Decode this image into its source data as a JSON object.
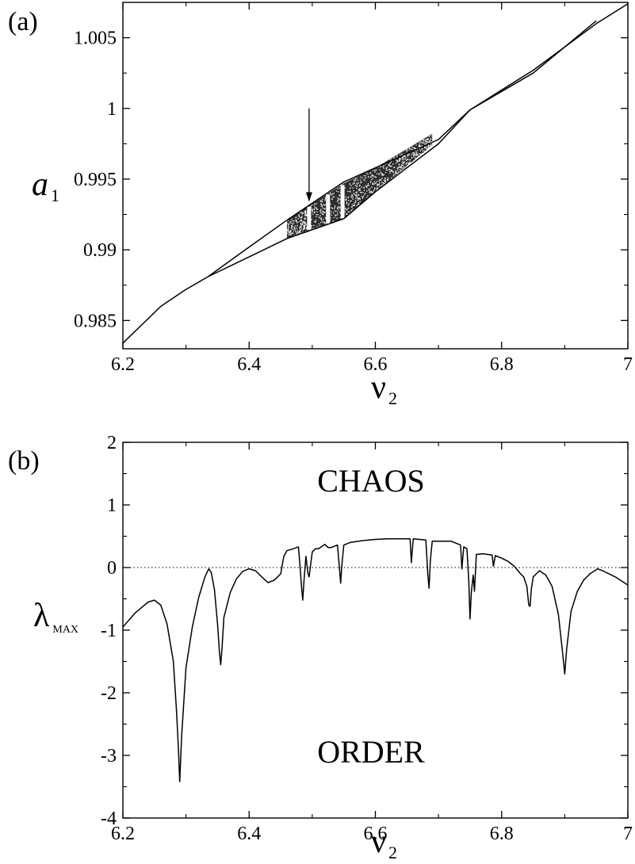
{
  "chart_data": [
    {
      "type": "line",
      "panel_label": "(a)",
      "xlabel": "ν",
      "xlabel_sub": "2",
      "ylabel": "a",
      "ylabel_sub": "1",
      "xlim": [
        6.2,
        7.0
      ],
      "ylim": [
        0.983,
        1.0075
      ],
      "x_ticks": [
        "6.2",
        "6.4",
        "6.6",
        "6.8",
        "7"
      ],
      "y_ticks": [
        "0.985",
        "0.99",
        "0.995",
        "1",
        "1.005"
      ],
      "x_tick_values": [
        6.2,
        6.4,
        6.6,
        6.8,
        7.0
      ],
      "y_tick_values": [
        0.985,
        0.99,
        0.995,
        1.0,
        1.005
      ],
      "grid": false,
      "annotations": [
        {
          "type": "arrow",
          "x": 6.495,
          "y_from": 1.0,
          "y_to": 0.9934
        }
      ],
      "series": [
        {
          "x": [
            6.2,
            6.26,
            6.3,
            6.335
          ],
          "y": [
            0.9834,
            0.986,
            0.9872,
            0.9881
          ]
        },
        {
          "x": [
            6.335,
            6.4,
            6.46,
            6.55,
            6.6,
            6.7,
            6.75,
            6.85,
            6.95,
            7.0
          ],
          "y": [
            0.9881,
            0.9902,
            0.9921,
            0.9948,
            0.9958,
            0.9978,
            0.9999,
            1.0027,
            1.006,
            1.0074
          ]
        },
        {
          "x": [
            6.335,
            6.4,
            6.46,
            6.55,
            6.6,
            6.7,
            6.75,
            6.85,
            6.95
          ],
          "y": [
            0.9881,
            0.9895,
            0.9908,
            0.9922,
            0.9941,
            0.9975,
            0.9999,
            1.0025,
            1.0062
          ]
        }
      ],
      "chaotic_band": {
        "x_start": 6.46,
        "x_end": 6.69,
        "y_upper": [
          [
            6.46,
            0.9921
          ],
          [
            6.55,
            0.9947
          ],
          [
            6.6,
            0.9958
          ],
          [
            6.69,
            0.9982
          ]
        ],
        "y_lower": [
          [
            6.46,
            0.9908
          ],
          [
            6.55,
            0.9922
          ],
          [
            6.6,
            0.9941
          ],
          [
            6.69,
            0.9974
          ]
        ],
        "windows": [
          6.495,
          6.525,
          6.548
        ]
      }
    },
    {
      "type": "line",
      "panel_label": "(b)",
      "xlabel": "ν",
      "xlabel_sub": "2",
      "ylabel": "λ",
      "ylabel_sub": "MAX",
      "xlim": [
        6.2,
        7.0
      ],
      "ylim": [
        -4,
        2
      ],
      "x_ticks": [
        "6.2",
        "6.4",
        "6.6",
        "6.8",
        "7"
      ],
      "y_ticks": [
        "-4",
        "-3",
        "-2",
        "-1",
        "0",
        "1",
        "2"
      ],
      "x_tick_values": [
        6.2,
        6.4,
        6.6,
        6.8,
        7.0
      ],
      "y_tick_values": [
        -4,
        -3,
        -2,
        -1,
        0,
        1,
        2
      ],
      "grid": false,
      "reference_line": {
        "y": 0,
        "style": "dotted"
      },
      "annotations": [
        {
          "text": "CHAOS",
          "x": 6.6,
          "y": 1.05
        },
        {
          "text": "ORDER",
          "x": 6.6,
          "y": -3.35
        }
      ],
      "series": [
        {
          "x": [
            6.2,
            6.22,
            6.24,
            6.25,
            6.26,
            6.27,
            6.28,
            6.285,
            6.288,
            6.29,
            6.293,
            6.3,
            6.31,
            6.32,
            6.33,
            6.336,
            6.34,
            6.345,
            6.35,
            6.353,
            6.355,
            6.357,
            6.36,
            6.37,
            6.38,
            6.39,
            6.4,
            6.41,
            6.42,
            6.43,
            6.44,
            6.45,
            6.455,
            6.46,
            6.47,
            6.478,
            6.48,
            6.483,
            6.485,
            6.487,
            6.49,
            6.493,
            6.495,
            6.5,
            6.505,
            6.51,
            6.52,
            6.525,
            6.53,
            6.54,
            6.543,
            6.545,
            6.547,
            6.55,
            6.56,
            6.58,
            6.6,
            6.62,
            6.64,
            6.655,
            6.657,
            6.66,
            6.67,
            6.68,
            6.683,
            6.685,
            6.687,
            6.69,
            6.7,
            6.72,
            6.735,
            6.737,
            6.74,
            6.745,
            6.748,
            6.75,
            6.752,
            6.755,
            6.757,
            6.76,
            6.77,
            6.785,
            6.787,
            6.79,
            6.8,
            6.81,
            6.82,
            6.83,
            6.835,
            6.84,
            6.843,
            6.845,
            6.847,
            6.85,
            6.86,
            6.87,
            6.88,
            6.89,
            6.897,
            6.9,
            6.903,
            6.91,
            6.92,
            6.93,
            6.94,
            6.952,
            6.96,
            6.98,
            7.0
          ],
          "y": [
            -0.95,
            -0.72,
            -0.55,
            -0.52,
            -0.6,
            -0.9,
            -1.5,
            -2.3,
            -2.9,
            -3.42,
            -2.7,
            -1.6,
            -0.95,
            -0.48,
            -0.15,
            -0.02,
            -0.08,
            -0.35,
            -0.9,
            -1.35,
            -1.55,
            -1.3,
            -0.8,
            -0.4,
            -0.18,
            -0.06,
            -0.02,
            -0.05,
            -0.15,
            -0.24,
            -0.2,
            -0.1,
            0.18,
            0.27,
            0.3,
            0.33,
            0.1,
            -0.3,
            -0.52,
            -0.2,
            0.18,
            -0.08,
            -0.15,
            0.25,
            0.3,
            0.3,
            0.37,
            0.32,
            0.32,
            0.36,
            0.0,
            -0.25,
            0.05,
            0.36,
            0.4,
            0.43,
            0.45,
            0.46,
            0.46,
            0.46,
            0.08,
            0.46,
            0.45,
            0.44,
            -0.1,
            -0.33,
            0.1,
            0.42,
            0.42,
            0.42,
            0.36,
            -0.02,
            0.33,
            0.3,
            -0.2,
            -0.82,
            -0.4,
            -0.12,
            -0.38,
            0.21,
            0.22,
            0.2,
            0.02,
            0.19,
            0.15,
            0.1,
            0.02,
            -0.1,
            -0.15,
            -0.3,
            -0.6,
            -0.62,
            -0.35,
            -0.15,
            -0.05,
            -0.12,
            -0.3,
            -0.75,
            -1.4,
            -1.7,
            -1.3,
            -0.7,
            -0.38,
            -0.2,
            -0.1,
            -0.02,
            -0.05,
            -0.15,
            -0.28
          ]
        }
      ]
    }
  ]
}
